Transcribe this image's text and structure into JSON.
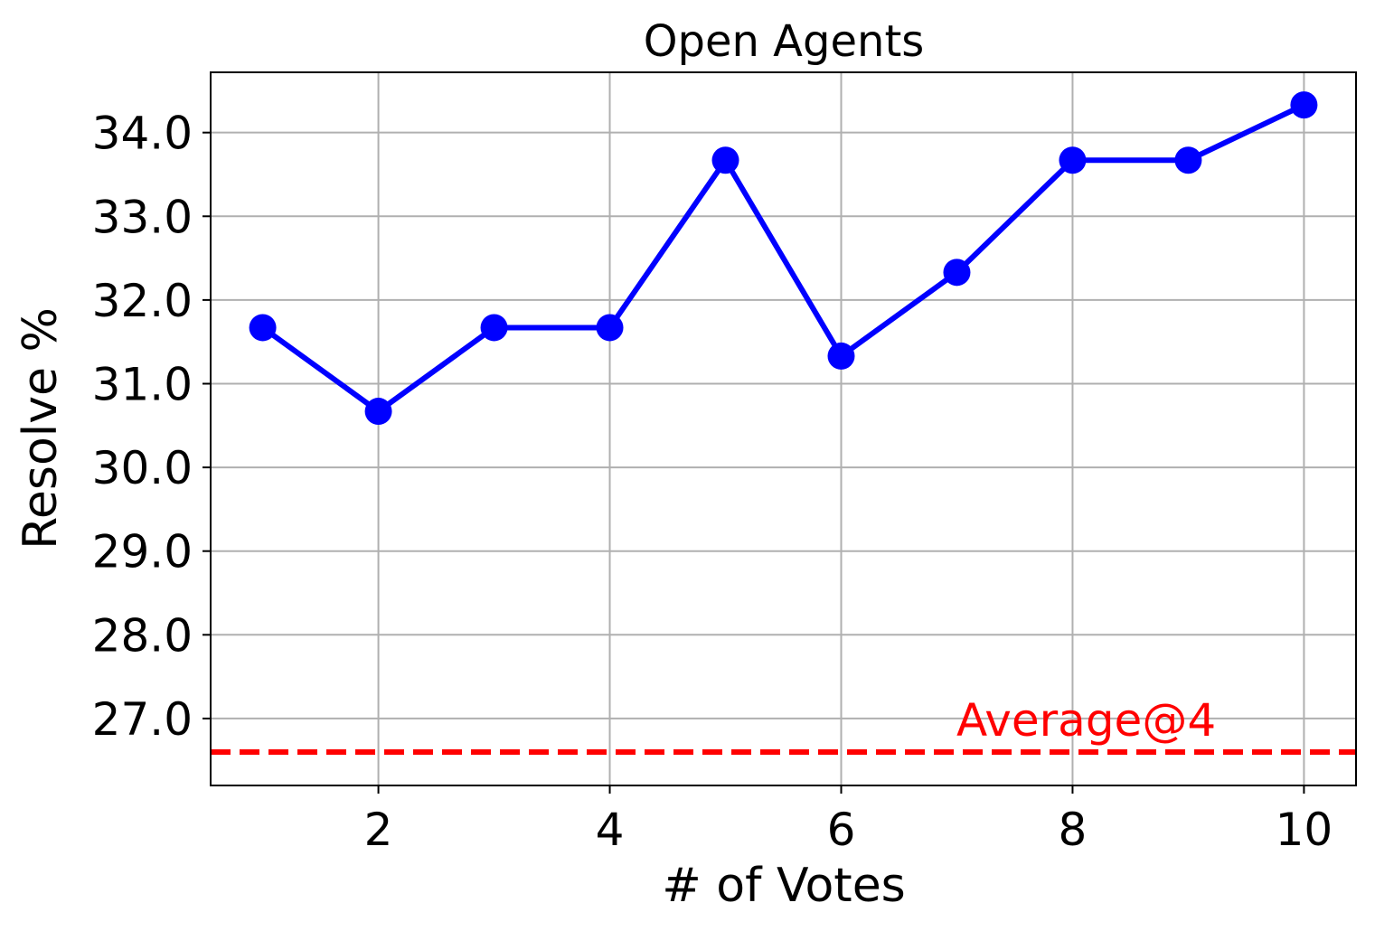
{
  "chart_data": {
    "type": "line",
    "title": "Open Agents",
    "xlabel": "# of Votes",
    "ylabel": "Resolve %",
    "x": [
      1,
      2,
      3,
      4,
      5,
      6,
      7,
      8,
      9,
      10
    ],
    "series": [
      {
        "values": [
          31.67,
          30.67,
          31.67,
          31.67,
          33.67,
          31.33,
          32.33,
          33.67,
          33.67,
          34.33
        ],
        "color": "#0000ff",
        "marker": "circle"
      }
    ],
    "reference_line": {
      "label": "Average@4",
      "y": 26.6,
      "color": "#ff0000",
      "style": "dashed"
    },
    "xlim": [
      0.55,
      10.45
    ],
    "ylim": [
      26.2,
      34.72
    ],
    "xticks": [
      2,
      4,
      6,
      8,
      10
    ],
    "xtick_labels": [
      "2",
      "4",
      "6",
      "8",
      "10"
    ],
    "yticks": [
      27,
      28,
      29,
      30,
      31,
      32,
      33,
      34
    ],
    "ytick_labels": [
      "27.0",
      "28.0",
      "29.0",
      "30.0",
      "31.0",
      "32.0",
      "33.0",
      "34.0"
    ],
    "grid": true
  }
}
